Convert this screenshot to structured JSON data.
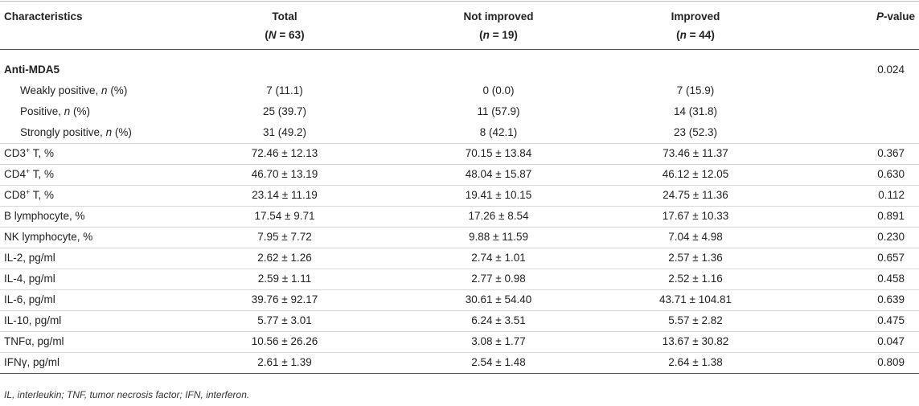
{
  "table": {
    "header": [
      [
        "Characteristics"
      ],
      [
        "Total",
        [
          "(",
          {
            "italic": "N"
          },
          " = 63)"
        ]
      ],
      [
        "Not improved",
        [
          "(",
          {
            "italic": "n"
          },
          " = 19)"
        ]
      ],
      [
        "Improved",
        [
          "(",
          {
            "italic": "n"
          },
          " = 44)"
        ]
      ],
      [
        [
          {
            "italic": "P"
          },
          "-value"
        ]
      ]
    ],
    "group": {
      "label": "Anti-MDA5",
      "p_value": "0.024",
      "rows": [
        [
          [
            "Weakly positive, ",
            {
              "italic": "n"
            },
            " (%)"
          ],
          "7 (11.1)",
          "0 (0.0)",
          "7 (15.9)"
        ],
        [
          [
            "Positive, ",
            {
              "italic": "n"
            },
            " (%)"
          ],
          "25 (39.7)",
          "11 (57.9)",
          "14 (31.8)"
        ],
        [
          [
            "Strongly positive, ",
            {
              "italic": "n"
            },
            " (%)"
          ],
          "31 (49.2)",
          "8 (42.1)",
          "23 (52.3)"
        ]
      ]
    },
    "rows": [
      [
        [
          "CD3",
          {
            "sup": "+"
          },
          " T, %"
        ],
        "72.46 ± 12.13",
        "70.15 ± 13.84",
        "73.46 ± 11.37",
        "0.367"
      ],
      [
        [
          "CD4",
          {
            "sup": "+"
          },
          " T, %"
        ],
        "46.70 ± 13.19",
        "48.04 ± 15.87",
        "46.12 ± 12.05",
        "0.630"
      ],
      [
        [
          "CD8",
          {
            "sup": "+"
          },
          " T, %"
        ],
        "23.14 ± 11.19",
        "19.41 ± 10.15",
        "24.75 ± 11.36",
        "0.112"
      ],
      [
        "B lymphocyte, %",
        "17.54 ± 9.71",
        "17.26 ± 8.54",
        "17.67 ± 10.33",
        "0.891"
      ],
      [
        "NK lymphocyte, %",
        "7.95 ± 7.72",
        "9.88 ± 11.59",
        "7.04 ± 4.98",
        "0.230"
      ],
      [
        "IL-2, pg/ml",
        "2.62 ± 1.26",
        "2.74 ± 1.01",
        "2.57 ± 1.36",
        "0.657"
      ],
      [
        "IL-4, pg/ml",
        "2.59 ± 1.11",
        "2.77 ± 0.98",
        "2.52 ± 1.16",
        "0.458"
      ],
      [
        "IL-6, pg/ml",
        "39.76 ± 92.17",
        "30.61 ± 54.40",
        "43.71 ± 104.81",
        "0.639"
      ],
      [
        "IL-10, pg/ml",
        "5.77 ± 3.01",
        "6.24 ± 3.51",
        "5.57 ± 2.82",
        "0.475"
      ],
      [
        "TNFα, pg/ml",
        "10.56 ± 26.26",
        "3.08 ± 1.77",
        "13.67 ± 30.82",
        "0.047"
      ],
      [
        "IFNγ, pg/ml",
        "2.61 ± 1.39",
        "2.54 ± 1.48",
        "2.64 ± 1.38",
        "0.809"
      ]
    ]
  },
  "footnote": "IL, interleukin; TNF, tumor necrosis factor; IFN, interferon."
}
